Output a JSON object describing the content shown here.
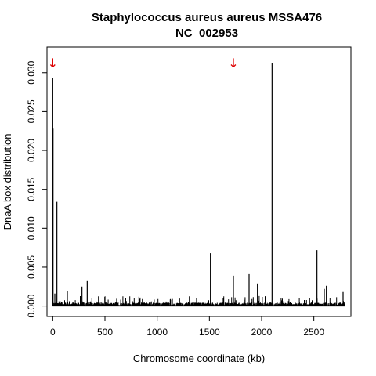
{
  "chart_data": {
    "type": "bar",
    "title": "Staphylococcus aureus aureus MSSA476",
    "subtitle": "NC_002953",
    "xlabel": "Chromosome coordinate (kb)",
    "ylabel": "DnaA box distribution",
    "xlim": [
      -55,
      2855
    ],
    "ylim": [
      -0.00135,
      0.0333
    ],
    "x_ticks": [
      0,
      500,
      1000,
      1500,
      2000,
      2500
    ],
    "x_tick_labels": [
      "0",
      "500",
      "1000",
      "1500",
      "2000",
      "2500"
    ],
    "y_ticks": [
      0.0,
      0.005,
      0.01,
      0.015,
      0.02,
      0.025,
      0.03
    ],
    "y_tick_labels": [
      "0.000",
      "0.005",
      "0.010",
      "0.015",
      "0.020",
      "0.025",
      "0.030"
    ],
    "grid": false,
    "legend": "none",
    "bar_color": "#000000",
    "marker_color": "#dd0000",
    "markers": [
      {
        "x": 0,
        "symbol": "↓"
      },
      {
        "x": 1730,
        "symbol": "↓"
      }
    ],
    "x": [
      0,
      3,
      20,
      40,
      140,
      280,
      330,
      1510,
      1730,
      1880,
      1960,
      2100,
      2530,
      2600,
      2620,
      2780
    ],
    "values": [
      0.0293,
      0.0228,
      0.0016,
      0.0134,
      0.0019,
      0.0025,
      0.0032,
      0.0068,
      0.0039,
      0.0041,
      0.0029,
      0.0312,
      0.0072,
      0.0022,
      0.0026,
      0.0018
    ]
  }
}
